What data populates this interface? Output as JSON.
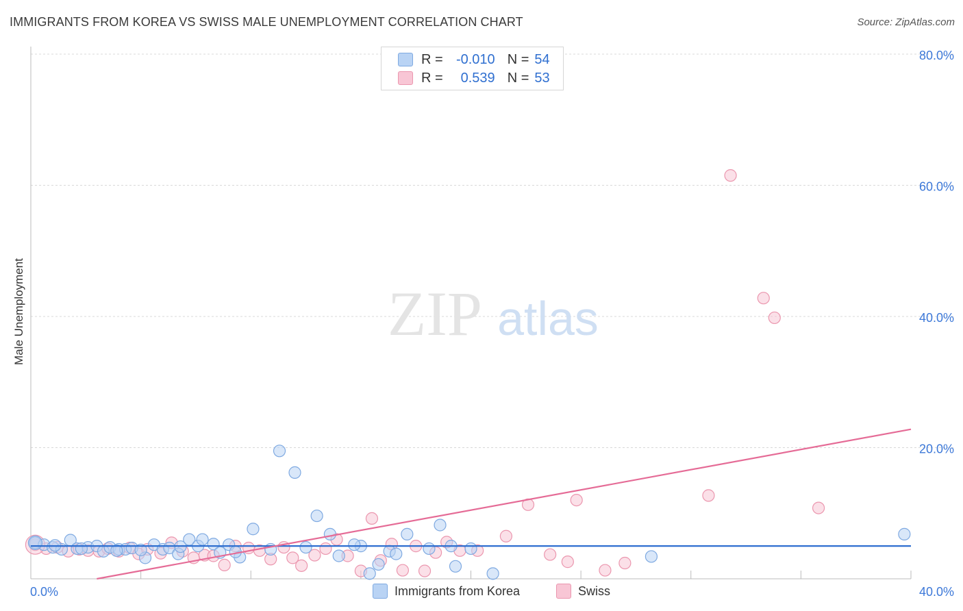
{
  "title": "IMMIGRANTS FROM KOREA VS SWISS MALE UNEMPLOYMENT CORRELATION CHART",
  "source": "Source: ZipAtlas.com",
  "watermark": {
    "zip": "ZIP",
    "atlas": "atlas"
  },
  "legend": {
    "rows": [
      {
        "r_label": "R =",
        "r_value": "-0.010",
        "n_label": "N =",
        "n_value": "54"
      },
      {
        "r_label": "R =",
        "r_value": "0.539",
        "n_label": "N =",
        "n_value": "53"
      }
    ]
  },
  "colors": {
    "korea_fill": "#b9d3f4",
    "korea_stroke": "#7ea9e1",
    "korea_line": "#2f6fd0",
    "swiss_fill": "#f8c6d5",
    "swiss_stroke": "#eb96ae",
    "swiss_line": "#e56b96",
    "tick_text": "#3c78d8",
    "grid": "#d8d8d8"
  },
  "chart_data": {
    "type": "scatter",
    "title": "IMMIGRANTS FROM KOREA VS SWISS MALE UNEMPLOYMENT CORRELATION CHART",
    "xlabel": "",
    "ylabel": "Male Unemployment",
    "xlim": [
      0,
      40
    ],
    "ylim": [
      0,
      80
    ],
    "x_ticks": [
      {
        "value": 0,
        "label": "0.0%"
      },
      {
        "value": 40,
        "label": "40.0%"
      }
    ],
    "y_ticks": [
      {
        "value": 20,
        "label": "20.0%"
      },
      {
        "value": 40,
        "label": "40.0%"
      },
      {
        "value": 60,
        "label": "60.0%"
      },
      {
        "value": 80,
        "label": "80.0%"
      }
    ],
    "series": [
      {
        "name": "Immigrants from Korea",
        "color_key": "korea",
        "trend": {
          "x": [
            0,
            40
          ],
          "y": [
            5.0,
            5.0
          ]
        },
        "points": [
          [
            0.2,
            5.5
          ],
          [
            0.6,
            5.2
          ],
          [
            1.0,
            4.8
          ],
          [
            1.4,
            4.5
          ],
          [
            1.8,
            5.9
          ],
          [
            2.1,
            4.6
          ],
          [
            2.6,
            4.8
          ],
          [
            3.0,
            5.0
          ],
          [
            3.3,
            4.2
          ],
          [
            3.6,
            4.8
          ],
          [
            4.0,
            4.5
          ],
          [
            4.3,
            4.5
          ],
          [
            4.6,
            4.7
          ],
          [
            5.2,
            3.2
          ],
          [
            5.6,
            5.2
          ],
          [
            6.0,
            4.5
          ],
          [
            6.3,
            4.7
          ],
          [
            6.7,
            3.8
          ],
          [
            7.2,
            6.0
          ],
          [
            7.6,
            5.0
          ],
          [
            7.8,
            6.0
          ],
          [
            8.3,
            5.3
          ],
          [
            8.6,
            4.0
          ],
          [
            9.0,
            5.2
          ],
          [
            9.5,
            3.3
          ],
          [
            10.1,
            7.6
          ],
          [
            10.9,
            4.5
          ],
          [
            11.3,
            19.5
          ],
          [
            12.0,
            16.2
          ],
          [
            12.5,
            4.8
          ],
          [
            13.0,
            9.6
          ],
          [
            13.6,
            6.8
          ],
          [
            14.0,
            3.5
          ],
          [
            15.0,
            5.0
          ],
          [
            15.4,
            0.8
          ],
          [
            15.8,
            2.2
          ],
          [
            16.3,
            4.2
          ],
          [
            16.6,
            3.8
          ],
          [
            17.1,
            6.8
          ],
          [
            18.1,
            4.6
          ],
          [
            18.6,
            8.2
          ],
          [
            19.1,
            5.0
          ],
          [
            19.3,
            1.9
          ],
          [
            20.0,
            4.6
          ],
          [
            21.0,
            0.8
          ],
          [
            28.2,
            3.4
          ],
          [
            39.7,
            6.8
          ],
          [
            5.0,
            4.4
          ],
          [
            2.3,
            4.6
          ],
          [
            3.9,
            4.3
          ],
          [
            6.8,
            4.9
          ],
          [
            9.3,
            4.1
          ],
          [
            14.7,
            5.2
          ],
          [
            1.1,
            5.1
          ]
        ]
      },
      {
        "name": "Swiss",
        "color_key": "swiss",
        "trend": {
          "x": [
            3.0,
            40
          ],
          "y": [
            0.0,
            22.8
          ]
        },
        "points": [
          [
            0.2,
            5.2
          ],
          [
            0.7,
            4.6
          ],
          [
            1.2,
            4.8
          ],
          [
            1.7,
            4.2
          ],
          [
            2.2,
            4.5
          ],
          [
            2.6,
            4.3
          ],
          [
            3.1,
            4.2
          ],
          [
            3.5,
            4.6
          ],
          [
            4.0,
            4.2
          ],
          [
            4.5,
            4.7
          ],
          [
            4.9,
            3.8
          ],
          [
            5.3,
            4.5
          ],
          [
            5.9,
            3.9
          ],
          [
            6.4,
            5.5
          ],
          [
            6.9,
            4.2
          ],
          [
            7.4,
            3.2
          ],
          [
            7.9,
            3.6
          ],
          [
            8.3,
            3.5
          ],
          [
            8.8,
            2.1
          ],
          [
            9.3,
            5.0
          ],
          [
            9.9,
            4.7
          ],
          [
            10.4,
            4.3
          ],
          [
            10.9,
            3.0
          ],
          [
            11.5,
            4.8
          ],
          [
            11.9,
            3.2
          ],
          [
            12.3,
            2.0
          ],
          [
            12.9,
            3.6
          ],
          [
            13.4,
            4.6
          ],
          [
            13.9,
            6.0
          ],
          [
            14.4,
            3.5
          ],
          [
            15.0,
            1.2
          ],
          [
            15.5,
            9.2
          ],
          [
            15.9,
            2.8
          ],
          [
            16.4,
            5.3
          ],
          [
            16.9,
            1.3
          ],
          [
            17.5,
            5.0
          ],
          [
            17.9,
            1.2
          ],
          [
            18.4,
            4.0
          ],
          [
            18.9,
            5.6
          ],
          [
            19.5,
            4.3
          ],
          [
            20.3,
            4.3
          ],
          [
            21.6,
            6.5
          ],
          [
            22.6,
            11.3
          ],
          [
            23.6,
            3.7
          ],
          [
            24.4,
            2.6
          ],
          [
            24.8,
            12.0
          ],
          [
            26.1,
            1.3
          ],
          [
            27.0,
            2.4
          ],
          [
            30.8,
            12.7
          ],
          [
            31.8,
            61.5
          ],
          [
            33.3,
            42.8
          ],
          [
            33.8,
            39.8
          ],
          [
            35.8,
            10.8
          ]
        ]
      }
    ],
    "legend_position": "top-center"
  },
  "bottom_legend": [
    {
      "label": "Immigrants from Korea"
    },
    {
      "label": "Swiss"
    }
  ]
}
